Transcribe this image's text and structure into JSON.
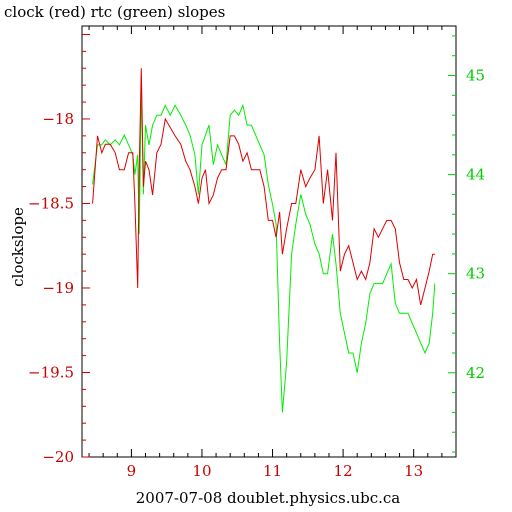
{
  "chart_data": {
    "type": "line",
    "title": "clock (red) rtc (green) slopes",
    "xlabel": "2007-07-08 doublet.physics.ubc.ca",
    "ylabel": "clockslope",
    "xlim": [
      8.3,
      13.6
    ],
    "ylim": [
      -20.0,
      -17.45
    ],
    "y2lim": [
      41.15,
      45.5
    ],
    "xticks": [
      9,
      10,
      11,
      12,
      13
    ],
    "xtick_labels": [
      "9",
      "10",
      "11",
      "12",
      "13"
    ],
    "yticks": [
      -18,
      -18.5,
      -19,
      -19.5,
      -20
    ],
    "ytick_labels": [
      "−18",
      "−18.5",
      "−19",
      "−19.5",
      "−20"
    ],
    "y2ticks": [
      45,
      44,
      43,
      42
    ],
    "y2tick_labels": [
      "45",
      "44",
      "43",
      "42"
    ],
    "grid": false,
    "legend": "none",
    "colors": {
      "clock": "#dd0000",
      "rtc": "#00ee00",
      "axis_left": "#cc0000",
      "axis_right": "#00cc00"
    },
    "series": [
      {
        "axis": "left",
        "color": "#dd0000",
        "x": [
          8.45,
          8.52,
          8.58,
          8.63,
          8.7,
          8.77,
          8.83,
          8.9,
          8.96,
          9.02,
          9.05,
          9.09,
          9.11,
          9.14,
          9.17,
          9.2,
          9.25,
          9.3,
          9.36,
          9.42,
          9.48,
          9.55,
          9.62,
          9.7,
          9.77,
          9.83,
          9.9,
          9.95,
          10.0,
          10.05,
          10.1,
          10.16,
          10.22,
          10.28,
          10.34,
          10.4,
          10.46,
          10.52,
          10.58,
          10.64,
          10.7,
          10.76,
          10.82,
          10.88,
          10.94,
          11.0,
          11.05,
          11.1,
          11.14,
          11.2,
          11.27,
          11.33,
          11.4,
          11.47,
          11.53,
          11.6,
          11.66,
          11.72,
          11.78,
          11.85,
          11.9,
          11.96,
          12.02,
          12.08,
          12.14,
          12.2,
          12.26,
          12.32,
          12.38,
          12.44,
          12.5,
          12.56,
          12.62,
          12.68,
          12.74,
          12.8,
          12.86,
          12.92,
          12.98,
          13.04,
          13.1,
          13.16,
          13.22,
          13.27,
          13.3
        ],
        "y": [
          -18.5,
          -18.1,
          -18.2,
          -18.15,
          -18.15,
          -18.2,
          -18.3,
          -18.3,
          -18.2,
          -18.2,
          -18.5,
          -19.0,
          -18.3,
          -17.7,
          -18.4,
          -18.25,
          -18.3,
          -18.45,
          -18.2,
          -18.15,
          -18.0,
          -18.05,
          -18.1,
          -18.15,
          -18.25,
          -18.3,
          -18.4,
          -18.5,
          -18.35,
          -18.3,
          -18.5,
          -18.45,
          -18.35,
          -18.3,
          -18.3,
          -18.1,
          -18.1,
          -18.15,
          -18.25,
          -18.2,
          -18.3,
          -18.3,
          -18.3,
          -18.4,
          -18.6,
          -18.6,
          -18.7,
          -18.55,
          -18.8,
          -18.65,
          -18.5,
          -18.5,
          -18.3,
          -18.4,
          -18.35,
          -18.3,
          -18.1,
          -18.5,
          -18.3,
          -18.6,
          -18.2,
          -18.9,
          -18.8,
          -18.75,
          -18.85,
          -18.95,
          -18.9,
          -18.95,
          -18.85,
          -18.65,
          -18.7,
          -18.65,
          -18.6,
          -18.6,
          -18.65,
          -18.85,
          -18.95,
          -18.95,
          -19.0,
          -18.95,
          -19.1,
          -19.0,
          -18.9,
          -18.8,
          -18.8
        ]
      },
      {
        "axis": "right",
        "color": "#00ee00",
        "x": [
          8.45,
          8.52,
          8.58,
          8.63,
          8.7,
          8.77,
          8.83,
          8.9,
          8.96,
          9.02,
          9.05,
          9.09,
          9.11,
          9.14,
          9.17,
          9.2,
          9.25,
          9.3,
          9.36,
          9.42,
          9.48,
          9.55,
          9.62,
          9.7,
          9.77,
          9.83,
          9.9,
          9.95,
          10.0,
          10.05,
          10.1,
          10.16,
          10.22,
          10.28,
          10.34,
          10.4,
          10.46,
          10.52,
          10.58,
          10.64,
          10.7,
          10.76,
          10.82,
          10.88,
          10.94,
          11.0,
          11.05,
          11.1,
          11.14,
          11.2,
          11.27,
          11.33,
          11.4,
          11.47,
          11.53,
          11.6,
          11.66,
          11.72,
          11.78,
          11.85,
          11.9,
          11.96,
          12.02,
          12.08,
          12.14,
          12.2,
          12.26,
          12.32,
          12.38,
          12.44,
          12.5,
          12.56,
          12.62,
          12.68,
          12.74,
          12.8,
          12.86,
          12.92,
          12.98,
          13.04,
          13.1,
          13.16,
          13.22,
          13.27,
          13.3
        ],
        "y": [
          43.9,
          44.3,
          44.3,
          44.35,
          44.3,
          44.35,
          44.3,
          44.4,
          44.3,
          44.2,
          44.0,
          44.2,
          43.4,
          44.9,
          43.8,
          44.5,
          44.3,
          44.5,
          44.6,
          44.6,
          44.7,
          44.6,
          44.7,
          44.6,
          44.5,
          44.4,
          44.2,
          43.8,
          44.3,
          44.4,
          44.5,
          44.1,
          44.3,
          44.2,
          44.1,
          44.6,
          44.65,
          44.6,
          44.7,
          44.5,
          44.5,
          44.4,
          44.3,
          44.2,
          43.9,
          43.7,
          43.5,
          42.3,
          41.6,
          42.1,
          43.2,
          43.5,
          43.8,
          43.6,
          43.5,
          43.3,
          43.2,
          43.0,
          43.0,
          43.4,
          43.1,
          42.6,
          42.4,
          42.2,
          42.2,
          42.0,
          42.3,
          42.5,
          42.8,
          42.9,
          42.9,
          42.9,
          43.0,
          43.1,
          42.7,
          42.6,
          42.6,
          42.6,
          42.5,
          42.4,
          42.3,
          42.2,
          42.3,
          42.6,
          42.9
        ]
      }
    ]
  }
}
